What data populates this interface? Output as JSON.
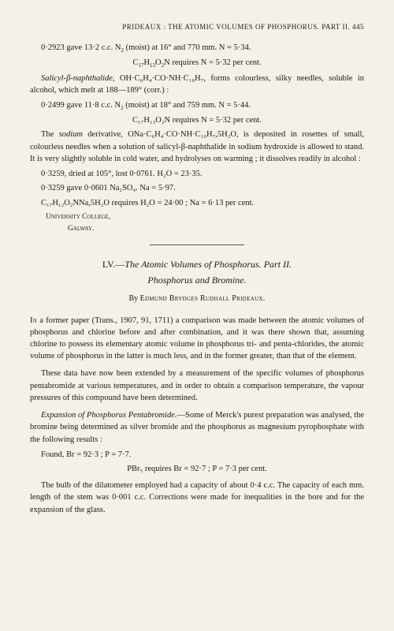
{
  "page": {
    "running_head": "PRIDEAUX : THE ATOMIC VOLUMES OF PHOSPHORUS.   PART II.   445",
    "background_color": "#f5f1e8",
    "text_color": "#1a1a1a",
    "body_fontsize": 10.5,
    "title_fontsize": 12,
    "head_fontsize": 9
  },
  "upper": {
    "line1a": "0·2923 gave 13·2 c.c. N",
    "line1b": " (moist) at 16° and 770 mm.   N = 5·34.",
    "line2a": "C",
    "line2b": "H",
    "line2c": "O",
    "line2d": "N requires N = 5·32 per cent.",
    "para1_lead": "Salicyl-β-naphthalide",
    "para1_rest": ", OH·C₆H₄·CO·NH·C₁₀H₇, forms colourless, silky needles, soluble in alcohol, which melt at 188—189° (corr.) :",
    "line3a": "0·2499 gave 11·8 c.c. N",
    "line3b": " (moist) at 18° and 759 mm.   N = 5·44.",
    "line4": "C₁₇H₁₃O₂N requires N = 5·32 per cent.",
    "para2_a": "The ",
    "para2_sodium": "sodium",
    "para2_b": " derivative, ONa·C₆H₄·CO·NH·C₁₀H₇,5H₂O, is deposited in rosettes of small, colourless needles when a solution of salicyl-β-naphthalide in sodium hydroxide is allowed to stand. It is very slightly soluble in cold water, and hydrolyses on warming ; it dissolves readily in alcohol :",
    "line5": "0·3259, dried at 105°, lost 0·0761.   H₂O = 23·35.",
    "line6": "0·3259 gave 0·0601 Na₂SO₄.   Na = 5·97.",
    "line7": "C₁₇H₁₂O₂NNa,5H₂O requires H₂O = 24·00 ;  Na = 6·13 per cent.",
    "affil1": "University College,",
    "affil2": "Galway."
  },
  "article": {
    "title_num": "LV.—",
    "title_main": "The Atomic Volumes of Phosphorus.   Part II.",
    "subtitle": "Phosphorus and Bromine.",
    "author_by": "By ",
    "author_name": "Edmund Brydges Rudhall Prideaux.",
    "p1_lead": "In",
    "p1_rest": " a former paper (Trans., 1907, 91, 1711) a comparison was made between the atomic volumes of phosphorus and chlorine before and after combination, and it was there shown that, assuming chlorine to possess its elementary atomic volume in phosphorus tri- and penta-chlorides, the atomic volume of phosphorus in the latter is much less, and in the former greater, than that of the element.",
    "p2": "These data have now been extended by a measurement of the specific volumes of phosphorus pentabromide at various temperatures, and in order to obtain a comparison temperature, the vapour pressures of this compound have been determined.",
    "p3_head": "Expansion of Phosphorus Pentabromide.",
    "p3_rest": "—Some of Merck's purest preparation was analysed, the bromine being determined as silver bromide and the phosphorus as magnesium pyrophosphate with the following results :",
    "found": "Found, Br = 92·3 ;  P = 7·7.",
    "requires": "PBr₅ requires Br = 92·7 ;  P = 7·3 per cent.",
    "p4": "The bulb of the dilatometer employed had a capacity of about 0·4 c.c. The capacity of each mm. length of the stem was 0·001 c.c. Corrections were made for inequalities in the bore and for the expansion of the glass."
  }
}
